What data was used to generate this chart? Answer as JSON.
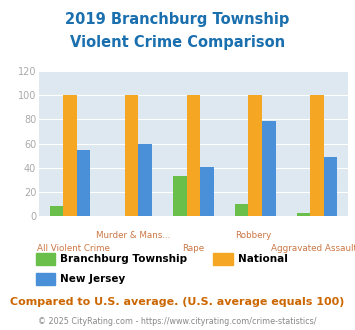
{
  "title_line1": "2019 Branchburg Township",
  "title_line2": "Violent Crime Comparison",
  "title_color": "#1a6faf",
  "categories": [
    "All Violent Crime",
    "Murder & Mans...",
    "Rape",
    "Robbery",
    "Aggravated Assault"
  ],
  "branchburg": [
    8,
    0,
    33,
    10,
    3
  ],
  "national": [
    100,
    100,
    100,
    100,
    100
  ],
  "new_jersey": [
    55,
    60,
    41,
    79,
    49
  ],
  "colors": {
    "branchburg": "#6abf4b",
    "national": "#f5a623",
    "new_jersey": "#4a90d9"
  },
  "ylim": [
    0,
    120
  ],
  "yticks": [
    0,
    20,
    40,
    60,
    80,
    100,
    120
  ],
  "plot_bg": "#dde8f0",
  "legend_labels": [
    "Branchburg Township",
    "National",
    "New Jersey"
  ],
  "footer_text": "Compared to U.S. average. (U.S. average equals 100)",
  "footer_color": "#cc6600",
  "copyright_text": "© 2025 CityRating.com - https://www.cityrating.com/crime-statistics/",
  "copyright_color": "#888888",
  "copyright_link_color": "#4a90d9",
  "xlabel_color": "#cc7744",
  "tick_color": "#aaaaaa",
  "grid_color": "#ffffff",
  "bar_width": 0.22
}
